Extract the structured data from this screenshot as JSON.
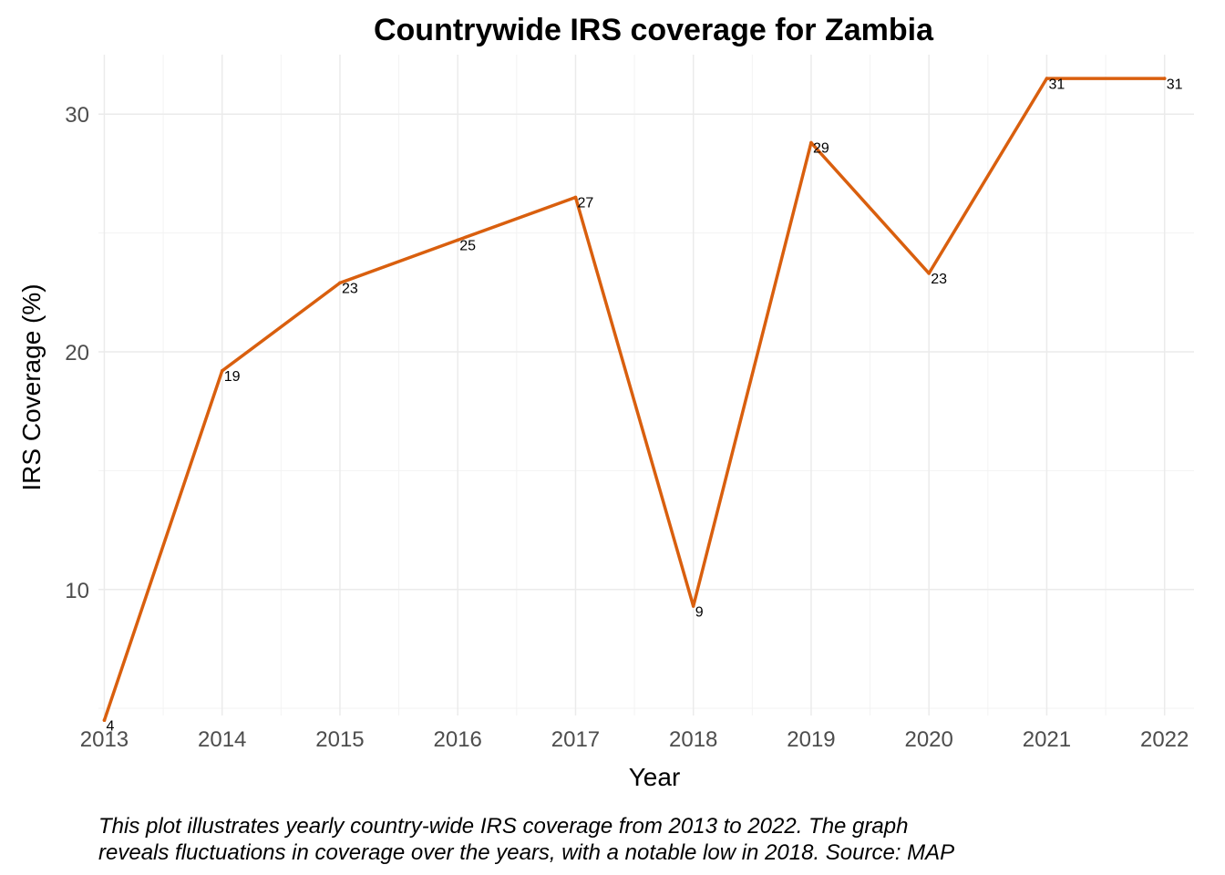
{
  "chart_data": {
    "type": "line",
    "title": "Countrywide IRS coverage for Zambia",
    "xlabel": "Year",
    "ylabel": "IRS Coverage (%)",
    "x": [
      2013,
      2014,
      2015,
      2016,
      2017,
      2018,
      2019,
      2020,
      2021,
      2022
    ],
    "x_ticks": [
      "2013",
      "2014",
      "2015",
      "2016",
      "2017",
      "2018",
      "2019",
      "2020",
      "2021",
      "2022"
    ],
    "y_ticks": [
      "10",
      "20",
      "30"
    ],
    "ylim": [
      4.7,
      32.5
    ],
    "xlim": [
      2012.95,
      2022.25
    ],
    "series": [
      {
        "values": [
          4.5,
          19.2,
          22.9,
          24.7,
          26.5,
          9.3,
          28.8,
          23.3,
          31.5,
          31.5
        ],
        "labels": [
          "4",
          "19",
          "23",
          "25",
          "27",
          "9",
          "29",
          "23",
          "31",
          "31"
        ],
        "color": "#d95f0e"
      }
    ],
    "grid": true,
    "legend": "none",
    "caption": [
      "This plot illustrates yearly country-wide IRS coverage from 2013 to 2022. The graph",
      "reveals fluctuations in coverage over the years, with a notable low in 2018. Source: MAP"
    ]
  }
}
